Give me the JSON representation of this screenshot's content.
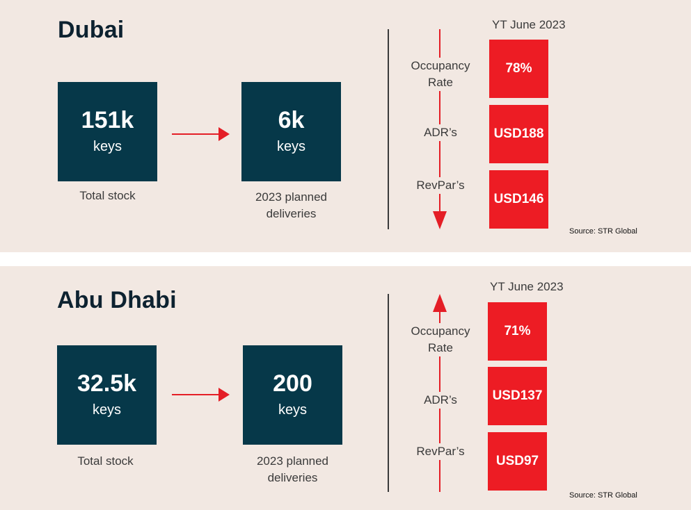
{
  "dubai": {
    "city": "Dubai",
    "stock_value": "151k",
    "stock_unit": "keys",
    "stock_caption": "Total stock",
    "deliveries_value": "6k",
    "deliveries_unit": "keys",
    "deliveries_caption_1": "2023 planned",
    "deliveries_caption_2": "deliveries",
    "period": "YT June 2023",
    "occupancy_label_1": "Occupancy",
    "occupancy_label_2": "Rate",
    "adr_label": "ADR’s",
    "revpar_label": "RevPar’s",
    "occupancy_value": "78%",
    "adr_value": "USD188",
    "revpar_value": "USD146",
    "source": "Source: STR Global"
  },
  "abu_dhabi": {
    "city": "Abu Dhabi",
    "stock_value": "32.5k",
    "stock_unit": "keys",
    "stock_caption": "Total stock",
    "deliveries_value": "200",
    "deliveries_unit": "keys",
    "deliveries_caption_1": "2023 planned",
    "deliveries_caption_2": "deliveries",
    "period": "YT June 2023",
    "occupancy_label_1": "Occupancy",
    "occupancy_label_2": "Rate",
    "adr_label": "ADR’s",
    "revpar_label": "RevPar’s",
    "occupancy_value": "71%",
    "adr_value": "USD137",
    "revpar_value": "USD97",
    "source": "Source: STR Global"
  },
  "colors": {
    "panel_background": "#f2e8e2",
    "box_navy": "#063849",
    "accent_red": "#ed1c24"
  },
  "icons": {
    "stock_to_deliveries": "arrow-right-icon",
    "dubai_trend": "arrow-down-icon",
    "abu_dhabi_trend": "arrow-up-icon"
  }
}
